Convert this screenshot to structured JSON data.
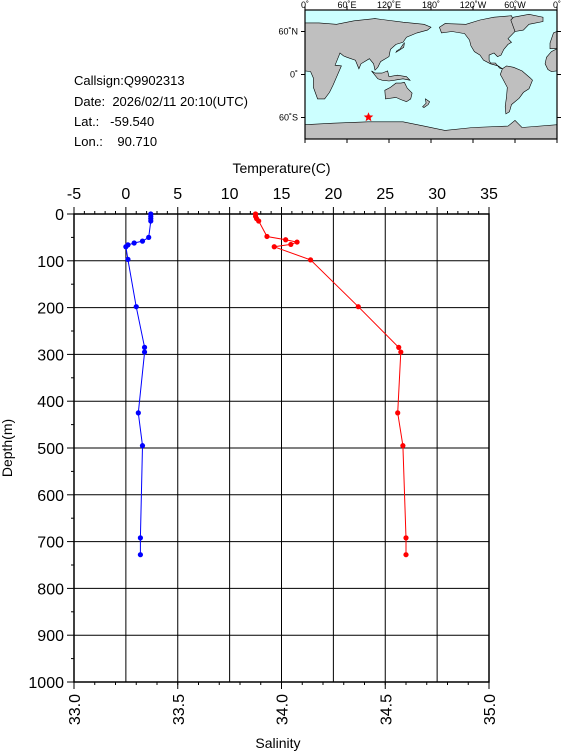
{
  "station": {
    "callsign_label": "Callsign:",
    "callsign": "Q9902313",
    "date_label": "Date:",
    "date": "2026/02/11 20:10(UTC)",
    "lat_label": "Lat.:",
    "lat": "-59.540",
    "lon_label": "Lon.:",
    "lon": "90.710"
  },
  "map": {
    "lon_ticks": [
      "0˚",
      "60˚E",
      "120˚E",
      "180˚",
      "120˚W",
      "60˚W",
      "0˚"
    ],
    "lat_ticks": [
      "60˚N",
      "0˚",
      "60˚S"
    ],
    "ocean_color": "#ccffff",
    "land_color": "#bfbfbf",
    "marker": {
      "lat": -59.54,
      "lon": 90.71,
      "color": "#ff0000",
      "symbol": "star"
    }
  },
  "chart_data": {
    "type": "line",
    "top_axis_label": "Temperature(C)",
    "bottom_axis_label": "Salinity",
    "ylabel": "Depth(m)",
    "temperature_ticks": [
      "-5",
      "0",
      "5",
      "10",
      "15",
      "20",
      "25",
      "30",
      "35"
    ],
    "temperature_lim": [
      -5,
      35
    ],
    "salinity_ticks": [
      "33.0",
      "33.5",
      "34.0",
      "34.5",
      "35.0"
    ],
    "salinity_lim": [
      33.0,
      35.0
    ],
    "depth_ticks": [
      "0",
      "100",
      "200",
      "300",
      "400",
      "500",
      "600",
      "700",
      "800",
      "900",
      "1000"
    ],
    "depth_lim": [
      0,
      1000
    ],
    "grid": true,
    "series": [
      {
        "variable": "temperature",
        "color": "#ff0000",
        "points": [
          [
            12.5,
            0
          ],
          [
            12.5,
            5
          ],
          [
            12.6,
            10
          ],
          [
            12.8,
            15
          ],
          [
            13.6,
            48
          ],
          [
            15.4,
            55
          ],
          [
            16.5,
            60
          ],
          [
            15.9,
            65
          ],
          [
            14.3,
            70
          ],
          [
            17.8,
            98
          ],
          [
            22.4,
            198
          ],
          [
            26.3,
            285
          ],
          [
            26.5,
            295
          ],
          [
            26.2,
            425
          ],
          [
            26.7,
            495
          ],
          [
            27.0,
            692
          ],
          [
            27.0,
            728
          ]
        ]
      },
      {
        "variable": "salinity",
        "color": "#0000ff",
        "points": [
          [
            33.37,
            0
          ],
          [
            33.37,
            5
          ],
          [
            33.37,
            10
          ],
          [
            33.37,
            15
          ],
          [
            33.36,
            50
          ],
          [
            33.33,
            58
          ],
          [
            33.29,
            62
          ],
          [
            33.26,
            66
          ],
          [
            33.25,
            70
          ],
          [
            33.26,
            97
          ],
          [
            33.3,
            198
          ],
          [
            33.34,
            285
          ],
          [
            33.34,
            295
          ],
          [
            33.31,
            425
          ],
          [
            33.33,
            495
          ],
          [
            33.32,
            692
          ],
          [
            33.32,
            728
          ]
        ]
      }
    ]
  }
}
